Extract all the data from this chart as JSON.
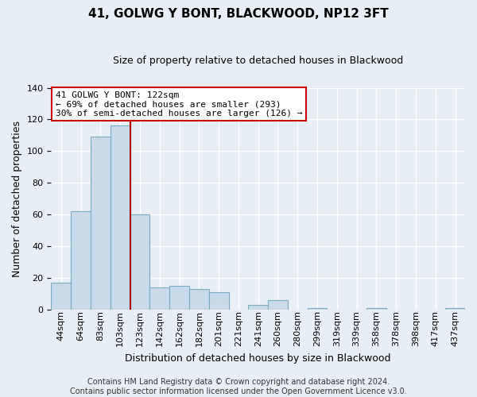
{
  "title": "41, GOLWG Y BONT, BLACKWOOD, NP12 3FT",
  "subtitle": "Size of property relative to detached houses in Blackwood",
  "xlabel": "Distribution of detached houses by size in Blackwood",
  "ylabel": "Number of detached properties",
  "bar_labels": [
    "44sqm",
    "64sqm",
    "83sqm",
    "103sqm",
    "123sqm",
    "142sqm",
    "162sqm",
    "182sqm",
    "201sqm",
    "221sqm",
    "241sqm",
    "260sqm",
    "280sqm",
    "299sqm",
    "319sqm",
    "339sqm",
    "358sqm",
    "378sqm",
    "398sqm",
    "417sqm",
    "437sqm"
  ],
  "bar_heights": [
    17,
    62,
    109,
    116,
    60,
    14,
    15,
    13,
    11,
    0,
    3,
    6,
    0,
    1,
    0,
    0,
    1,
    0,
    0,
    0,
    1
  ],
  "bar_color": "#c9daea",
  "bar_edge_color": "#7aaabf",
  "vline_color": "#aa0000",
  "ylim": [
    0,
    140
  ],
  "yticks": [
    0,
    20,
    40,
    60,
    80,
    100,
    120,
    140
  ],
  "annotation_title": "41 GOLWG Y BONT: 122sqm",
  "annotation_line1": "← 69% of detached houses are smaller (293)",
  "annotation_line2": "30% of semi-detached houses are larger (126) →",
  "annotation_box_color": "#ffffff",
  "annotation_box_edge": "#cc0000",
  "footer1": "Contains HM Land Registry data © Crown copyright and database right 2024.",
  "footer2": "Contains public sector information licensed under the Open Government Licence v3.0.",
  "background_color": "#e8eef5",
  "plot_background": "#e8eef5",
  "grid_color": "#ffffff",
  "title_fontsize": 11,
  "subtitle_fontsize": 9,
  "axis_label_fontsize": 9,
  "tick_fontsize": 8,
  "footer_fontsize": 7
}
